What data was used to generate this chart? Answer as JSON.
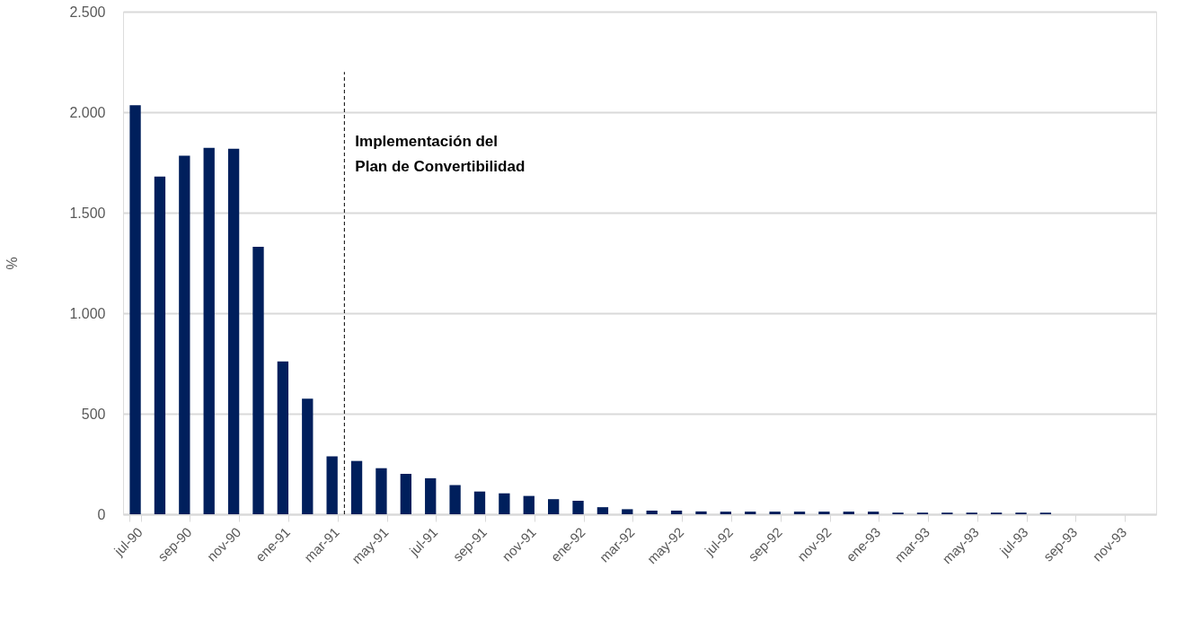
{
  "chart_data": {
    "type": "bar",
    "ylabel": "%",
    "categories": [
      "jul-90",
      null,
      "sep-90",
      null,
      "nov-90",
      null,
      "ene-91",
      null,
      "mar-91",
      null,
      "may-91",
      null,
      "jul-91",
      null,
      "sep-91",
      null,
      "nov-91",
      null,
      "ene-92",
      null,
      "mar-92",
      null,
      "may-92",
      null,
      "jul-92",
      null,
      "sep-92",
      null,
      "nov-92",
      null,
      "ene-93",
      null,
      "mar-93",
      null,
      "may-93",
      null,
      "jul-93",
      null,
      "sep-93",
      null,
      "nov-93",
      null
    ],
    "values": [
      2035,
      1680,
      1783,
      1823,
      1818,
      1330,
      760,
      575,
      288,
      265,
      229,
      201,
      179,
      145,
      113,
      104,
      91,
      75,
      67,
      35,
      25,
      18,
      18,
      14,
      13,
      13,
      13,
      13,
      13,
      13,
      13,
      8,
      8,
      8,
      8,
      8,
      8,
      8,
      null,
      null,
      null,
      null
    ],
    "color": "#001f5c",
    "ylim": [
      0,
      2500
    ],
    "yticks": [
      0,
      {
        "value": 500,
        "label": "500"
      },
      {
        "value": 1000,
        "label": "1.000"
      },
      {
        "value": 1500,
        "label": "1.500"
      },
      {
        "value": 2000,
        "label": "2.000"
      },
      {
        "value": 2500,
        "label": "2.500"
      }
    ],
    "grid": "y",
    "ref_lines": [
      {
        "axis": "x",
        "value": "mar-91",
        "label": "Implementación del\nPlan de Convertibilidad",
        "line_style": "dashed",
        "color": "#000000"
      }
    ]
  }
}
